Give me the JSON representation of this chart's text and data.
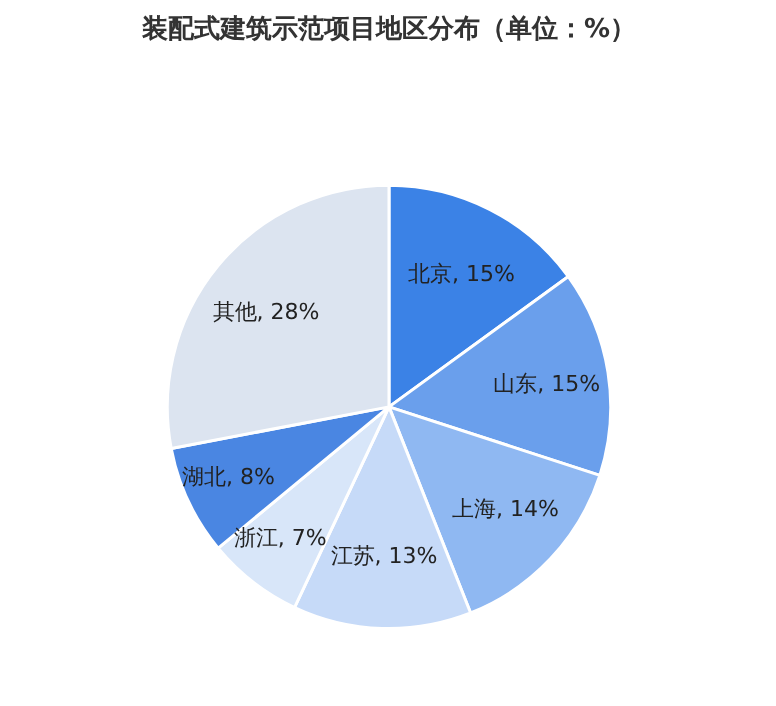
{
  "chart_data": {
    "type": "pie",
    "title": "装配式建筑示范项目地区分布（单位：%）",
    "categories": [
      "北京",
      "山东",
      "上海",
      "江苏",
      "浙江",
      "湖北",
      "其他"
    ],
    "values": [
      15,
      15,
      14,
      13,
      7,
      8,
      28
    ],
    "value_labels": [
      "15%",
      "15%",
      "14%",
      "13%",
      "7%",
      "8%",
      "28%"
    ],
    "colors": [
      "#3b82e6",
      "#6a9fec",
      "#8fb8f2",
      "#c6daf8",
      "#d8e6f9",
      "#4a86e2",
      "#dce4f0"
    ]
  }
}
